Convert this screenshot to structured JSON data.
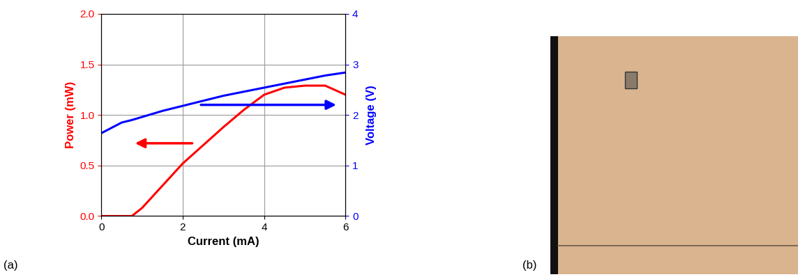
{
  "chart_data": {
    "type": "line",
    "x_label": "Current (mA)",
    "y_label": "Power (mW)",
    "y2_label": "Voltage (V)",
    "x": [
      0,
      0.5,
      0.75,
      1,
      1.5,
      2,
      2.5,
      3,
      3.5,
      4,
      4.5,
      5,
      5.5,
      6
    ],
    "series": [
      {
        "color": "#ff0000",
        "axis": "y",
        "values": [
          0,
          0,
          0,
          0.08,
          0.3,
          0.52,
          0.7,
          0.88,
          1.05,
          1.2,
          1.27,
          1.29,
          1.29,
          1.2
        ]
      },
      {
        "color": "#0000ff",
        "axis": "y2",
        "values": [
          1.64,
          1.85,
          1.9,
          1.96,
          2.08,
          2.18,
          2.28,
          2.38,
          2.46,
          2.54,
          2.62,
          2.7,
          2.78,
          2.84
        ]
      }
    ],
    "xlim": [
      0,
      6
    ],
    "xticks": [
      0,
      2,
      4,
      6
    ],
    "ylim": [
      0,
      2
    ],
    "yticks": [
      {
        "value": 0,
        "label": "0.0"
      },
      0.5,
      {
        "value": 1,
        "label": "1.0"
      },
      1.5,
      {
        "value": 2,
        "label": "2.0"
      }
    ],
    "y2lim": [
      0,
      4
    ],
    "y2ticks": [
      0,
      1,
      2,
      3,
      4
    ],
    "grid": true
  },
  "panels": [
    "(a)",
    "(b)"
  ]
}
